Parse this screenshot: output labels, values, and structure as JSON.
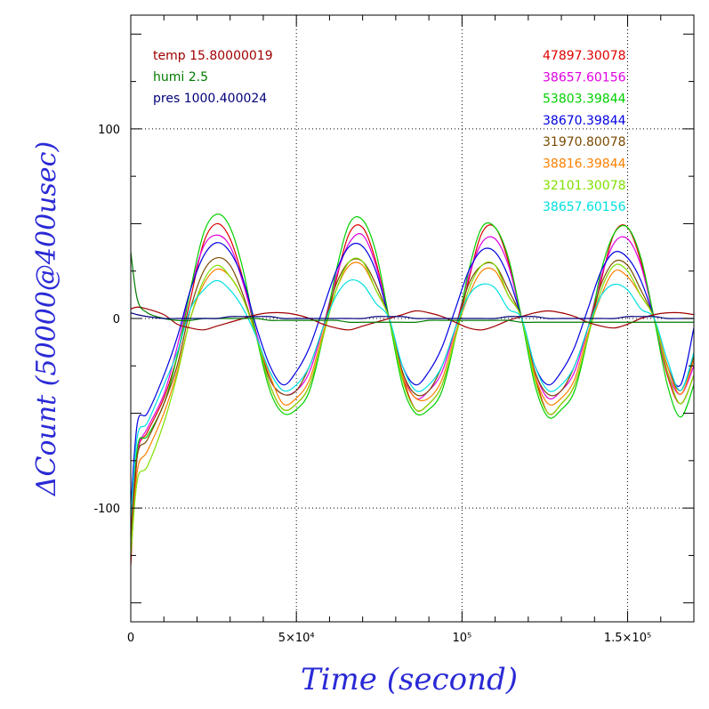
{
  "chart_data": {
    "type": "line",
    "xlabel": "Time (second)",
    "ylabel": "ΔCount (50000@400usec)",
    "xlim": [
      0,
      170000
    ],
    "ylim": [
      -160,
      160
    ],
    "x_ticks": [
      {
        "value": 0,
        "label": "0"
      },
      {
        "value": 50000,
        "label": "5×10⁴"
      },
      {
        "value": 100000,
        "label": "10⁵"
      },
      {
        "value": 150000,
        "label": "1.5×10⁵"
      }
    ],
    "y_ticks": [
      {
        "value": -100,
        "label": "-100"
      },
      {
        "value": 0,
        "label": "0"
      },
      {
        "value": 100,
        "label": "100"
      }
    ],
    "grid": true,
    "env_legend": [
      {
        "text": "temp 15.80000019",
        "color": "#a00000"
      },
      {
        "text": "humi 2.5",
        "color": "#007a00"
      },
      {
        "text": "pres 1000.400024",
        "color": "#00007a"
      }
    ],
    "series_legend": [
      {
        "text": "47897.30078",
        "color": "#e00000"
      },
      {
        "text": "38657.60156",
        "color": "#e000e0"
      },
      {
        "text": "53803.39844",
        "color": "#00d000"
      },
      {
        "text": "38670.39844",
        "color": "#0000e0"
      },
      {
        "text": "31970.80078",
        "color": "#7a4a00"
      },
      {
        "text": "38816.39844",
        "color": "#ff8000"
      },
      {
        "text": "32101.30078",
        "color": "#80e000"
      },
      {
        "text": "38657.60156",
        "color": "#00e0e0"
      }
    ],
    "x": [
      0,
      2000,
      5000,
      10000,
      14000,
      18000,
      22000,
      26000,
      30000,
      34000,
      38000,
      42000,
      46000,
      50000,
      54000,
      58000,
      62000,
      66000,
      70000,
      74000,
      78000,
      82000,
      86000,
      90000,
      94000,
      98000,
      102000,
      106000,
      110000,
      114000,
      118000,
      122000,
      126000,
      130000,
      134000,
      138000,
      142000,
      146000,
      150000,
      154000,
      158000,
      162000,
      166000,
      170000
    ],
    "series": [
      {
        "color": "#e00000",
        "values": [
          -130,
          -72,
          -60,
          -42,
          -20,
          10,
          40,
          50,
          42,
          20,
          -10,
          -35,
          -48,
          -45,
          -35,
          -10,
          20,
          45,
          48,
          30,
          0,
          -30,
          -48,
          -45,
          -35,
          -10,
          20,
          45,
          48,
          30,
          0,
          -30,
          -50,
          -45,
          -35,
          -10,
          20,
          45,
          48,
          30,
          0,
          -30,
          -45,
          -30
        ]
      },
      {
        "color": "#e000e0",
        "values": [
          -110,
          -70,
          -58,
          -40,
          -15,
          15,
          38,
          44,
          38,
          18,
          -8,
          -32,
          -40,
          -38,
          -28,
          -5,
          22,
          40,
          44,
          28,
          0,
          -28,
          -42,
          -38,
          -28,
          -5,
          22,
          40,
          42,
          28,
          0,
          -28,
          -42,
          -38,
          -28,
          -5,
          22,
          40,
          42,
          28,
          0,
          -28,
          -40,
          -25
        ]
      },
      {
        "color": "#00d000",
        "values": [
          -120,
          -68,
          -62,
          -45,
          -20,
          15,
          45,
          55,
          48,
          25,
          -10,
          -38,
          -50,
          -48,
          -38,
          -10,
          25,
          50,
          52,
          35,
          0,
          -35,
          -50,
          -48,
          -38,
          -10,
          25,
          48,
          48,
          32,
          0,
          -35,
          -52,
          -48,
          -38,
          -10,
          25,
          45,
          48,
          32,
          0,
          -35,
          -52,
          -35
        ]
      },
      {
        "color": "#0000e0",
        "values": [
          -100,
          -55,
          -50,
          -30,
          -10,
          15,
          33,
          40,
          35,
          20,
          -5,
          -25,
          -35,
          -28,
          -15,
          5,
          25,
          38,
          38,
          25,
          0,
          -25,
          -35,
          -28,
          -15,
          5,
          25,
          36,
          35,
          22,
          0,
          -25,
          -35,
          -28,
          -15,
          5,
          25,
          35,
          32,
          20,
          0,
          -25,
          -35,
          -5
        ]
      },
      {
        "color": "#7a4a00",
        "values": [
          -115,
          -72,
          -64,
          -45,
          -25,
          5,
          25,
          32,
          28,
          12,
          -10,
          -32,
          -40,
          -38,
          -25,
          -5,
          18,
          30,
          30,
          18,
          0,
          -28,
          -40,
          -38,
          -25,
          -5,
          18,
          28,
          28,
          15,
          0,
          -28,
          -40,
          -38,
          -25,
          -5,
          18,
          30,
          28,
          15,
          0,
          -25,
          -38,
          -20
        ]
      },
      {
        "color": "#ff8000",
        "values": [
          -125,
          -80,
          -70,
          -50,
          -28,
          0,
          18,
          26,
          22,
          10,
          -10,
          -30,
          -45,
          -42,
          -32,
          -8,
          15,
          28,
          28,
          15,
          0,
          -30,
          -42,
          -42,
          -32,
          -8,
          12,
          25,
          25,
          12,
          0,
          -30,
          -45,
          -42,
          -32,
          -8,
          12,
          25,
          22,
          12,
          0,
          -25,
          -40,
          -22
        ]
      },
      {
        "color": "#80e000",
        "values": [
          -125,
          -85,
          -78,
          -55,
          -30,
          0,
          20,
          28,
          22,
          10,
          -10,
          -35,
          -48,
          -45,
          -35,
          -10,
          15,
          30,
          30,
          15,
          0,
          -32,
          -48,
          -45,
          -35,
          -10,
          15,
          28,
          28,
          12,
          0,
          -32,
          -50,
          -45,
          -35,
          -10,
          15,
          28,
          25,
          12,
          0,
          -28,
          -45,
          -30
        ]
      },
      {
        "color": "#00e0e0",
        "values": [
          -105,
          -62,
          -55,
          -35,
          -18,
          5,
          15,
          20,
          15,
          5,
          -10,
          -28,
          -38,
          -35,
          -25,
          -5,
          12,
          20,
          18,
          8,
          0,
          -25,
          -38,
          -35,
          -25,
          -5,
          12,
          18,
          16,
          5,
          0,
          -25,
          -38,
          -35,
          -25,
          -5,
          12,
          18,
          15,
          5,
          0,
          -22,
          -38,
          -18
        ]
      },
      {
        "color": "#a00000",
        "values": [
          5,
          6,
          5,
          2,
          -3,
          -5,
          -6,
          -4,
          -2,
          0,
          2,
          3,
          3,
          2,
          0,
          -3,
          -5,
          -6,
          -4,
          -2,
          0,
          2,
          4,
          3,
          1,
          -2,
          -5,
          -6,
          -4,
          -1,
          1,
          3,
          4,
          3,
          1,
          -2,
          -4,
          -5,
          -3,
          0,
          2,
          3,
          3,
          2
        ]
      },
      {
        "color": "#007a00",
        "values": [
          35,
          10,
          3,
          0,
          -1,
          -1,
          0,
          0,
          0,
          0,
          0,
          -1,
          -1,
          -1,
          -1,
          -1,
          -1,
          -2,
          -2,
          -2,
          -2,
          -2,
          -2,
          -1,
          -1,
          -1,
          -1,
          -1,
          -1,
          -1,
          -2,
          -2,
          -2,
          -2,
          -2,
          -2,
          -2,
          -2,
          -2,
          -2,
          -2,
          -2,
          -2,
          -2
        ]
      },
      {
        "color": "#00007a",
        "values": [
          3,
          2,
          1,
          0,
          0,
          0,
          0,
          0,
          1,
          1,
          1,
          1,
          0,
          0,
          0,
          0,
          0,
          0,
          0,
          1,
          1,
          1,
          0,
          0,
          0,
          0,
          0,
          0,
          0,
          1,
          1,
          1,
          0,
          0,
          0,
          0,
          0,
          0,
          1,
          1,
          1,
          0,
          0,
          0
        ]
      }
    ]
  }
}
